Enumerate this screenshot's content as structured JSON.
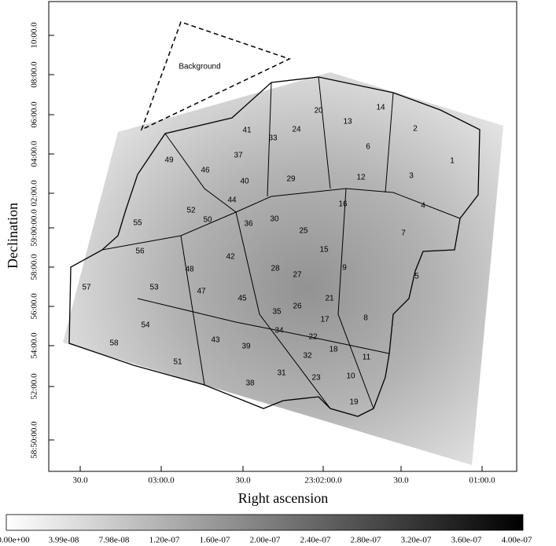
{
  "figure": {
    "xlabel": "Right ascension",
    "ylabel": "Declination",
    "xtick_labels": [
      "30.0",
      "03:00.0",
      "30.0",
      "23:02:00.0",
      "30.0",
      "01:00.0"
    ],
    "ytick_labels": [
      "10:00.0",
      "08:00.0",
      "06:00.0",
      "04:00.0",
      "02:00.0",
      "59:00:00.0",
      "58:00.0",
      "56:00.0",
      "54:00.0",
      "52:00.0",
      "58:50:00.0"
    ],
    "regions": [
      "1",
      "2",
      "3",
      "4",
      "5",
      "6",
      "7",
      "8",
      "9",
      "10",
      "11",
      "12",
      "13",
      "14",
      "15",
      "16",
      "17",
      "18",
      "19",
      "20",
      "21",
      "22",
      "23",
      "24",
      "25",
      "26",
      "27",
      "28",
      "29",
      "30",
      "31",
      "32",
      "33",
      "34",
      "35",
      "36",
      "37",
      "38",
      "39",
      "40",
      "41",
      "42",
      "43",
      "44",
      "45",
      "46",
      "47",
      "48",
      "49",
      "50",
      "51",
      "52",
      "53",
      "54",
      "55",
      "56",
      "57",
      "58",
      "Background"
    ],
    "colorbar_labels": [
      "0.00e+00",
      "3.99e-08",
      "7.98e-08",
      "1.20e-07",
      "1.60e-07",
      "2.00e-07",
      "2.40e-07",
      "2.80e-07",
      "3.20e-07",
      "3.60e-07",
      "4.00e-07"
    ]
  }
}
